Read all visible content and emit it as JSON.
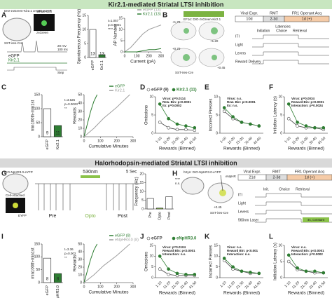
{
  "figure": {
    "banners": [
      "Kir2.1-mediated Striatal LTSI inhibition",
      "Halorhodopsin-mediated Striatal LTSI inhibition"
    ],
    "letters": [
      "A",
      "B",
      "C",
      "D",
      "E",
      "F",
      "G",
      "H",
      "I",
      "J",
      "K",
      "L"
    ],
    "a": {
      "virus": "DIO-zsGreen-Kir2.1 or DIO-eGFP",
      "mouse": "SST-ires-Cre",
      "whole_cell": "Whole Cell",
      "zsgreen": "zsGreen",
      "scale_v": "20 mV",
      "scale_t": "100 ms",
      "traces": [
        "eGFP",
        "Kir2.1"
      ],
      "step": "Step"
    },
    "b": {
      "virus": "EF1α: DIO-zsGreen-Kir2.1",
      "mouse": "SST-ires-Cre",
      "coords": [
        "+1.70",
        "+1.20",
        "+0.70",
        "+0.45"
      ]
    },
    "g": {
      "virus": "DIO-NpHR3.0-eYFP",
      "cell": "Cell-Attached",
      "eyfp": "EYFP",
      "light": "530nm",
      "scale": "5 Sec",
      "phases": [
        "Pre",
        "Opto",
        "Post"
      ]
    },
    "h": {
      "virus": "hSyn: DIO-NpHR3.0-eYFP",
      "mouse": "SST-ires-Cre",
      "enphr": "eNpHR",
      "coord": "+0.45"
    },
    "bar_charts": [
      {
        "ylabel": "Spontaneous Frequency (Hz)",
        "categories": [
          "eGFP",
          "Kir2.1"
        ],
        "values": [
          10,
          1
        ],
        "colors": [
          "#ffffff",
          "#2e7d32"
        ],
        "n": [
          13,
          13
        ],
        "ylim": [
          0,
          15
        ],
        "yticks": [
          0,
          5,
          10,
          15
        ],
        "stats": [
          "t=1.057",
          "p=0.0001",
          "****"
        ]
      },
      {
        "ylabel": "min100th-min1st",
        "categories": [
          "eGFP",
          "Kir2.1"
        ],
        "values": [
          100,
          40
        ],
        "colors": [
          "#ffffff",
          "#2e7d32"
        ],
        "n": [
          9,
          11
        ],
        "ylim": [
          0,
          150
        ],
        "yticks": [
          0,
          50,
          100,
          150
        ],
        "stats": [
          "t=3.625",
          "p=0.0023",
          "**"
        ]
      },
      {
        "ylabel": "Frequency (Hz)",
        "categories": [
          "Pre",
          "Opto",
          "Post"
        ],
        "values": [
          6,
          0.5,
          7
        ],
        "colors": [
          "#ffffff",
          "#8bc34a",
          "#ffffff"
        ],
        "n": [],
        "ylim": [
          0,
          20
        ],
        "yticks": [
          0,
          5,
          10,
          15,
          20
        ],
        "stats": [
          "****",
          "n.s."
        ]
      },
      {
        "ylabel": "min100th-min1st",
        "categories": [
          "eGFP",
          "NpHR3.0"
        ],
        "values": [
          95,
          35
        ],
        "colors": [
          "#ffffff",
          "#2e7d32"
        ],
        "n": [
          8,
          8
        ],
        "ylim": [
          0,
          150
        ],
        "yticks": [
          0,
          50,
          100,
          150
        ],
        "stats": [
          "t=3.36",
          "p=0.002",
          "**"
        ]
      }
    ],
    "xy_charts": [
      {
        "xlabel": "Current (pA)",
        "ylabel": "AP Number",
        "xlim": [
          0,
          300
        ],
        "xticks": [
          0,
          100,
          200,
          300
        ],
        "ylim": [
          0,
          15
        ],
        "yticks": [
          0,
          5,
          10,
          15
        ],
        "series": [
          {
            "name": "eGFP (13)",
            "color": "#9e9e9e",
            "x": [
              0,
              50,
              100,
              150,
              200,
              250,
              300
            ],
            "values": [
              0,
              2,
              5,
              8,
              10,
              11,
              12
            ]
          },
          {
            "name": "Kir2.1 (13)",
            "color": "#2e7d32",
            "x": [
              0,
              50,
              100,
              150,
              200,
              250,
              300
            ],
            "values": [
              0,
              0,
              0,
              0.5,
              1,
              1,
              1.5
            ]
          }
        ]
      },
      {
        "xlabel": "Cumulative Minutes",
        "ylabel": "Rewards",
        "xlim": [
          0,
          300
        ],
        "xticks": [
          0,
          100,
          200,
          300
        ],
        "ylim": [
          0,
          50
        ],
        "yticks": [
          0,
          10,
          20,
          30,
          40,
          50
        ],
        "series": [
          {
            "name": "eGFP",
            "color": "#2e7d32",
            "x": [
              0,
              20,
              40,
              60,
              80
            ],
            "values": [
              0,
              15,
              30,
              42,
              50
            ]
          },
          {
            "name": "Kir2.1",
            "color": "#9e9e9e",
            "x": [
              0,
              60,
              120,
              200,
              280
            ],
            "values": [
              0,
              10,
              22,
              35,
              50
            ]
          }
        ]
      },
      {
        "xlabel": "Cumulative Minutes",
        "ylabel": "Rewards",
        "xlim": [
          0,
          300
        ],
        "xticks": [
          0,
          100,
          200,
          300
        ],
        "ylim": [
          0,
          50
        ],
        "yticks": [
          0,
          10,
          20,
          30,
          40,
          50
        ],
        "series": [
          {
            "name": "eGFP (8)",
            "color": "#2e7d32",
            "x": [
              0,
              20,
              40,
              60,
              80
            ],
            "values": [
              0,
              15,
              30,
              42,
              50
            ]
          },
          {
            "name": "eNpHR3.0 (8)",
            "color": "#9e9e9e",
            "x": [
              0,
              60,
              120,
              200,
              280
            ],
            "values": [
              0,
              10,
              22,
              35,
              50
            ]
          }
        ]
      }
    ],
    "line_charts": [
      {
        "ylabel": "Omissions",
        "xlabel": "Rewards (Binned)",
        "categories": [
          "1-10",
          "11-20",
          "21-30",
          "31-40",
          "41-50"
        ],
        "ylim": [
          0,
          10
        ],
        "yticks": [
          0,
          5,
          10
        ],
        "legend": true,
        "stats": [
          "Virus: p=0.0114",
          "Rew. Bin: p<0.0001",
          "Itx: p=0.0002"
        ],
        "series": [
          {
            "name": "eGFP (9)",
            "color": "#ffffff",
            "values": [
              3,
              1.5,
              1,
              1,
              0.8
            ]
          },
          {
            "name": "Kir2.1 (11)",
            "color": "#2e7d32",
            "values": [
              8,
              4,
              2.5,
              2,
              1.5
            ]
          }
        ]
      },
      {
        "ylabel": "Incorrect Presses",
        "xlabel": "Rewards (Binned)",
        "categories": [
          "1-10",
          "11-20",
          "21-30",
          "31-40",
          "41-50"
        ],
        "ylim": [
          0,
          10
        ],
        "yticks": [
          0,
          5,
          10
        ],
        "legend": false,
        "stats": [
          "Virus: n.s.",
          "Rew. Bin: p<0.0001",
          "Itx: n.s."
        ],
        "series": [
          {
            "name": "eGFP (9)",
            "color": "#ffffff",
            "values": [
              6,
              4,
              3,
              2.5,
              2
            ]
          },
          {
            "name": "Kir2.1 (11)",
            "color": "#2e7d32",
            "values": [
              7,
              4.5,
              3,
              2.5,
              2
            ]
          }
        ]
      },
      {
        "ylabel": "Initiation Latency (s)",
        "xlabel": "Rewards (Binned)",
        "categories": [
          "1-10",
          "11-20",
          "21-30",
          "31-40",
          "41-50"
        ],
        "ylim": [
          0,
          10
        ],
        "yticks": [
          0,
          5,
          10
        ],
        "legend": false,
        "stats": [
          "Virus: p=0.0034",
          "Reward Bin: p<0.0001",
          "Interaction: p=0.0024"
        ],
        "series": [
          {
            "name": "eGFP (9)",
            "color": "#ffffff",
            "values": [
              4,
              2,
              1.5,
              1.5,
              1
            ]
          },
          {
            "name": "Kir2.1 (11)",
            "color": "#2e7d32",
            "values": [
              8,
              3,
              2,
              1.5,
              1.5
            ]
          }
        ]
      },
      {
        "ylabel": "Omissions",
        "xlabel": "Rewards (Binned)",
        "categories": [
          "1-10",
          "11-20",
          "21-30",
          "31-40",
          "41-50"
        ],
        "ylim": [
          0,
          15
        ],
        "yticks": [
          0,
          5,
          10,
          15
        ],
        "legend": true,
        "stats": [
          "Virus: p=0.0104",
          "Reward Bin: p<0.0001",
          "Interaction: n.s."
        ],
        "series": [
          {
            "name": "eGFP",
            "color": "#ffffff",
            "values": [
              4,
              1.5,
              1,
              1,
              1
            ]
          },
          {
            "name": "eNpHR3.0",
            "color": "#2e7d32",
            "values": [
              10,
              4,
              2,
              1.5,
              1.5
            ]
          }
        ]
      },
      {
        "ylabel": "Incorrect Presses",
        "xlabel": "Rewards (Binned)",
        "categories": [
          "1-10",
          "11-20",
          "21-30",
          "31-40",
          "41-50"
        ],
        "ylim": [
          0,
          15
        ],
        "yticks": [
          0,
          5,
          10,
          15
        ],
        "legend": false,
        "stats": [
          "Virus: n.s.",
          "Reward Bin: p<0.001",
          "Interaction: n.s."
        ],
        "series": [
          {
            "name": "eGFP",
            "color": "#ffffff",
            "values": [
              8,
              4,
              3,
              2,
              2
            ]
          },
          {
            "name": "eNpHR3.0",
            "color": "#2e7d32",
            "values": [
              9,
              5,
              3,
              2.5,
              2
            ]
          }
        ]
      },
      {
        "ylabel": "Initiation Latency (s)",
        "xlabel": "Rewards (Binned)",
        "categories": [
          "1-10",
          "11-20",
          "21-30",
          "31-40",
          "41-50"
        ],
        "ylim": [
          0,
          10
        ],
        "yticks": [
          0,
          5,
          10
        ],
        "legend": false,
        "stats": [
          "Virus: n.s.",
          "Reward Bin: p<0.0001",
          "Interaction: p=0.0002"
        ],
        "series": [
          {
            "name": "eGFP",
            "color": "#ffffff",
            "values": [
              5,
              2.5,
              2,
              1.5,
              1.5
            ]
          },
          {
            "name": "eNpHR3.0",
            "color": "#2e7d32",
            "values": [
              7,
              3,
              2,
              2,
              1.5
            ]
          }
        ]
      }
    ],
    "timelines": [
      {
        "stages": [
          "Viral Expr.",
          "RMT",
          "FR1 Operant Acq"
        ],
        "durations": [
          "10d",
          "2-3d",
          "1d (+)"
        ],
        "latencies": "Latencies",
        "events": [
          "Initiation",
          "Choice",
          "Retrieval"
        ],
        "rows": [
          "ITI",
          "Light",
          "Levers",
          "Reward Delivery"
        ]
      },
      {
        "stages": [
          "Viral Expr.",
          "RMT",
          "FR1 Operant Acq"
        ],
        "durations": [
          "21d",
          "2-3d",
          "1d (+)"
        ],
        "events": [
          "Init.",
          "Choice",
          "Retrieval"
        ],
        "rows": [
          "ITI",
          "Light",
          "Levers",
          "560nm Laser"
        ],
        "laser": "4s, constant"
      }
    ]
  }
}
